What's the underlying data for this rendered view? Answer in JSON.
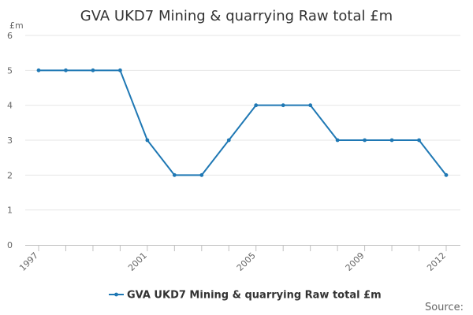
{
  "chart_data": {
    "type": "line",
    "title": "GVA UKD7 Mining & quarrying Raw total £m",
    "ylabel": "£m",
    "xlabel": "",
    "x": [
      1997,
      1998,
      1999,
      2000,
      2001,
      2002,
      2003,
      2004,
      2005,
      2006,
      2007,
      2008,
      2009,
      2010,
      2011,
      2012
    ],
    "x_tick_labels": [
      "1997",
      "2001",
      "2005",
      "2009",
      "2012"
    ],
    "x_ticks": [
      1997,
      2001,
      2005,
      2009,
      2012
    ],
    "y_ticks": [
      0,
      1,
      2,
      3,
      4,
      5,
      6
    ],
    "ylim": [
      0,
      6
    ],
    "grid": true,
    "legend_position": "bottom",
    "series": [
      {
        "name": "GVA UKD7 Mining & quarrying Raw total £m",
        "color": "#1f78b4",
        "values": [
          5,
          5,
          5,
          5,
          3,
          2,
          2,
          3,
          4,
          4,
          4,
          3,
          3,
          3,
          3,
          2
        ]
      }
    ]
  },
  "footer": {
    "source_label": "Source:"
  }
}
